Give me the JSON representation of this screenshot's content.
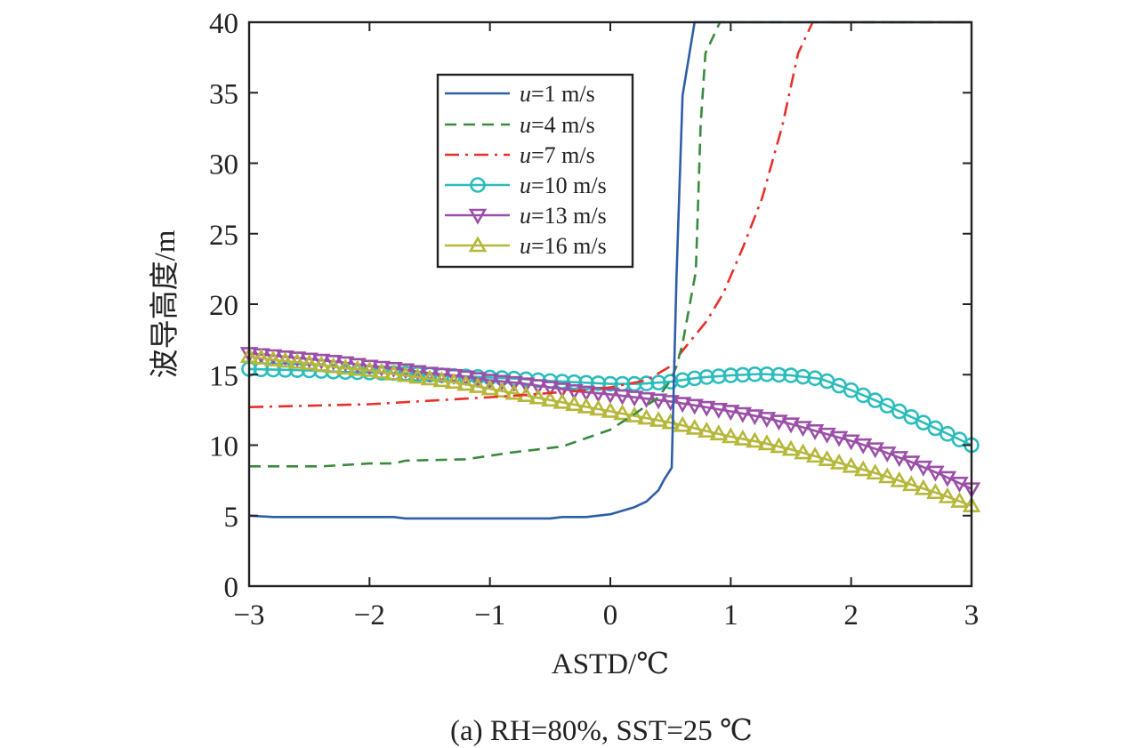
{
  "chart_data": {
    "type": "line",
    "title": "(a) RH=80%, SST=25 ℃",
    "xlabel": "ASTD/℃",
    "ylabel": "波导高度/m",
    "xlim": [
      -3,
      3
    ],
    "ylim": [
      0,
      40
    ],
    "xticks": [
      "−3",
      "−2",
      "−1",
      "0",
      "1",
      "2",
      "3"
    ],
    "yticks": [
      "0",
      "5",
      "10",
      "15",
      "20",
      "25",
      "30",
      "35",
      "40"
    ],
    "grid": false,
    "legend_placement": "upper-center-left",
    "series": [
      {
        "name": "u=1 m/s",
        "legend_var": "u",
        "legend_rest": "=1 m/s",
        "color": "#2f5ea8",
        "style": "solid",
        "marker": "none",
        "x": [
          -3,
          -2.8,
          -1.8,
          -1.7,
          -0.5,
          -0.4,
          -0.2,
          0,
          0.2,
          0.3,
          0.4,
          0.45,
          0.51,
          0.55,
          0.6,
          0.7,
          3
        ],
        "y": [
          5.0,
          4.9,
          4.9,
          4.8,
          4.8,
          4.9,
          4.9,
          5.1,
          5.6,
          6.0,
          6.8,
          7.6,
          8.4,
          22,
          34.8,
          40,
          40
        ]
      },
      {
        "name": "u=4 m/s",
        "legend_var": "u",
        "legend_rest": "=4 m/s",
        "color": "#3a8a3e",
        "style": "dashed",
        "marker": "none",
        "x": [
          -3,
          -2.4,
          -2,
          -1.8,
          -1.7,
          -1.2,
          -0.8,
          -0.4,
          -0.2,
          0,
          0.2,
          0.4,
          0.5,
          0.55,
          0.6,
          0.71,
          0.75,
          0.79,
          0.91,
          3
        ],
        "y": [
          8.5,
          8.5,
          8.7,
          8.7,
          8.9,
          9.0,
          9.5,
          9.9,
          10.5,
          11.1,
          12.2,
          13.4,
          14.6,
          15.6,
          17.2,
          22.3,
          32.7,
          37.8,
          40,
          40
        ]
      },
      {
        "name": "u=7 m/s",
        "legend_var": "u",
        "legend_rest": "=7 m/s",
        "color": "#e8302a",
        "style": "dashdot",
        "marker": "none",
        "x": [
          -3,
          -2,
          -1.8,
          -1.2,
          -0.8,
          -0.2,
          0,
          0.3,
          0.5,
          0.6,
          0.8,
          0.94,
          1.1,
          1.26,
          1.43,
          1.56,
          1.68,
          3
        ],
        "y": [
          12.7,
          12.9,
          13.0,
          13.3,
          13.5,
          13.9,
          14.1,
          14.6,
          15.6,
          16.7,
          18.8,
          20.8,
          24.0,
          27.5,
          32.7,
          37.8,
          40,
          40
        ]
      },
      {
        "name": "u=10 m/s",
        "legend_var": "u",
        "legend_rest": "=10 m/s",
        "color": "#2bbcbc",
        "style": "solid",
        "marker": "circle",
        "x_step": 0.25,
        "y": [
          15.4,
          15.35,
          15.3,
          15.2,
          15.15,
          15.1,
          15.0,
          14.9,
          14.8,
          14.7,
          14.55,
          14.45,
          14.35,
          14.35,
          14.5,
          14.8,
          14.95,
          15.05,
          14.95,
          14.7,
          13.9,
          13.0,
          12.0,
          11.0,
          10.0
        ]
      },
      {
        "name": "u=13 m/s",
        "legend_var": "u",
        "legend_rest": "=13 m/s",
        "color": "#9b4fa8",
        "style": "solid",
        "marker": "triangle-down",
        "x_step": 0.25,
        "y": [
          16.5,
          16.3,
          16.1,
          15.9,
          15.6,
          15.4,
          15.1,
          14.9,
          14.6,
          14.4,
          14.1,
          13.8,
          13.6,
          13.35,
          13.1,
          12.75,
          12.4,
          12.0,
          11.5,
          10.9,
          10.3,
          9.6,
          8.8,
          7.9,
          6.9
        ]
      },
      {
        "name": "u=16 m/s",
        "legend_var": "u",
        "legend_rest": "=16 m/s",
        "color": "#b5b83a",
        "style": "solid",
        "marker": "triangle-up",
        "x_step": 0.25,
        "y": [
          16.3,
          16.0,
          15.8,
          15.5,
          15.3,
          15.0,
          14.7,
          14.4,
          14.0,
          13.6,
          13.2,
          12.8,
          12.4,
          12.0,
          11.6,
          11.1,
          10.6,
          10.2,
          9.7,
          9.1,
          8.5,
          7.9,
          7.2,
          6.5,
          5.7
        ]
      }
    ]
  }
}
